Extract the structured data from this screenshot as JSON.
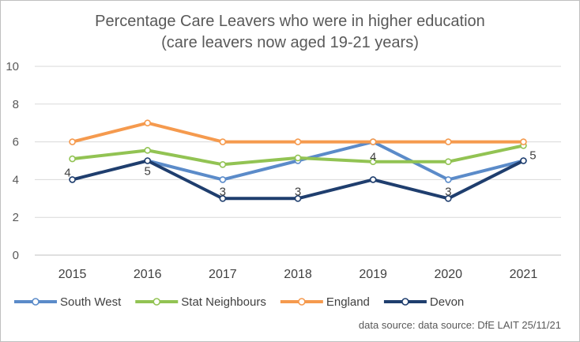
{
  "chart_data": {
    "type": "line",
    "title_line1": "Percentage Care Leavers who were in higher education",
    "title_line2": "(care leavers now aged 19-21 years)",
    "categories": [
      "2015",
      "2016",
      "2017",
      "2018",
      "2019",
      "2020",
      "2021"
    ],
    "ylim": [
      0,
      10
    ],
    "yticks": [
      "0",
      "2",
      "4",
      "6",
      "8",
      "10"
    ],
    "grid": true,
    "legend_position": "bottom",
    "series": [
      {
        "name": "South West",
        "color": "#5b8bc9",
        "values": [
          null,
          5,
          4,
          5,
          6,
          4,
          5
        ]
      },
      {
        "name": "Stat Neighbours",
        "color": "#92c353",
        "values": [
          5.1,
          5.55,
          4.8,
          5.15,
          4.95,
          4.95,
          5.8
        ]
      },
      {
        "name": "England",
        "color": "#f59a4e",
        "values": [
          6,
          7,
          6,
          6,
          6,
          6,
          6
        ]
      },
      {
        "name": "Devon",
        "color": "#1f3e6e",
        "values": [
          4,
          5,
          3,
          3,
          4,
          3,
          5
        ]
      }
    ],
    "data_labels": [
      {
        "series": "Devon",
        "index": 0,
        "text": "4"
      },
      {
        "series": "Devon",
        "index": 1,
        "text": "5"
      },
      {
        "series": "Devon",
        "index": 2,
        "text": "3"
      },
      {
        "series": "Devon",
        "index": 3,
        "text": "3"
      },
      {
        "series": "Devon",
        "index": 4,
        "text": "4"
      },
      {
        "series": "Devon",
        "index": 5,
        "text": "3"
      },
      {
        "series": "Devon",
        "index": 6,
        "text": "5"
      }
    ]
  },
  "source": "data source: data source:  DfE LAIT 25/11/21"
}
